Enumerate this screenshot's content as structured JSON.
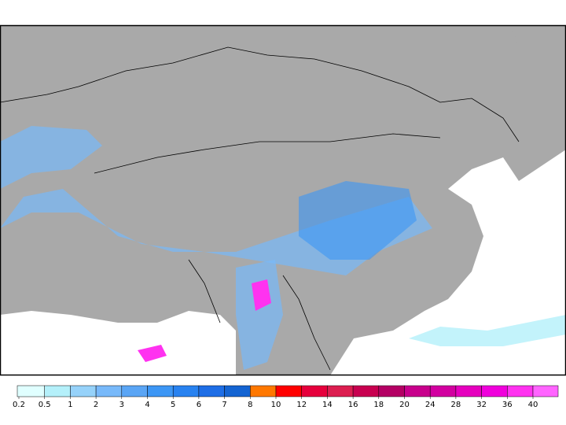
{
  "legend": {
    "ticks": [
      0.2,
      0.5,
      1,
      2,
      3,
      4,
      5,
      6,
      7,
      8,
      10,
      12,
      14,
      16,
      18,
      20,
      24,
      28,
      32,
      36,
      40
    ],
    "colors": [
      "#e0ffff",
      "#b4f0fa",
      "#96d2fa",
      "#78b9fa",
      "#5aa5f5",
      "#3c96f5",
      "#2882f0",
      "#1e6ee6",
      "#1464d2",
      "#ff7800",
      "#ff0000",
      "#e6003c",
      "#dc1e50",
      "#c80050",
      "#b40064",
      "#c8008c",
      "#d200a0",
      "#e600be",
      "#f000dc",
      "#ff32f0",
      "#ff64ff"
    ]
  }
}
